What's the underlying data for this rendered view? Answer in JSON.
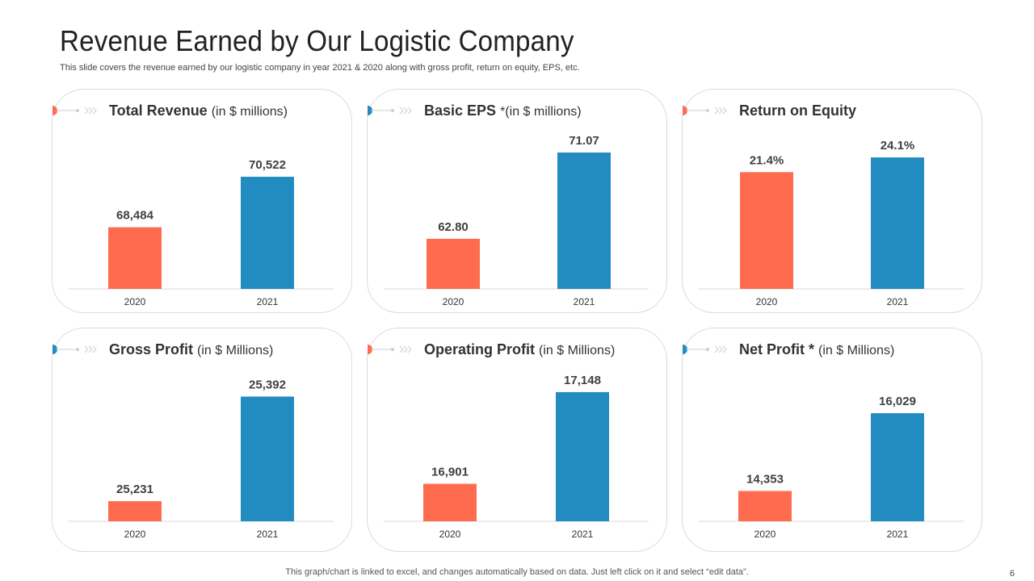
{
  "slide": {
    "title": "Revenue Earned by Our Logistic Company",
    "subtitle": "This slide covers the revenue earned by our logistic company in year 2021 & 2020 along with gross profit, return on equity, EPS, etc.",
    "footer_note": "This graph/chart is linked to excel, and changes automatically based on data. Just left click on it and select “edit data”.",
    "page_number": "6"
  },
  "colors": {
    "bar_2020": "#FF6B4F",
    "bar_2021": "#228BBF",
    "card_border": "#DCDCDC",
    "baseline": "#D9D9D9"
  },
  "cards": [
    {
      "title": "Total Revenue",
      "unit": "(in $ millions)",
      "accent": "#FF6B4F"
    },
    {
      "title": "Basic EPS",
      "unit": "*(in $ millions)",
      "accent": "#228BBF"
    },
    {
      "title": "Return on Equity",
      "unit": "",
      "accent": "#FF6B4F"
    },
    {
      "title": "Gross Profit",
      "unit": "(in $ Millions)",
      "accent": "#228BBF"
    },
    {
      "title": "Operating Profit",
      "unit": "(in $ Millions)",
      "accent": "#FF6B4F"
    },
    {
      "title": "Net Profit *",
      "unit": "(in $ Millions)",
      "accent": "#228BBF"
    }
  ],
  "chart_data": [
    {
      "type": "bar",
      "title": "Total Revenue (in $ millions)",
      "categories": [
        "2020",
        "2021"
      ],
      "values": [
        68484,
        70522
      ],
      "data_labels": [
        "68,484",
        "70,522"
      ],
      "ylim": [
        66000,
        71500
      ]
    },
    {
      "type": "bar",
      "title": "Basic EPS *(in $ millions)",
      "categories": [
        "2020",
        "2021"
      ],
      "values": [
        62.8,
        71.07
      ],
      "data_labels": [
        "62.80",
        "71.07"
      ],
      "ylim": [
        58,
        71.07
      ]
    },
    {
      "type": "bar",
      "title": "Return on Equity",
      "categories": [
        "2020",
        "2021"
      ],
      "values": [
        21.4,
        24.1
      ],
      "data_labels": [
        "21.4%",
        "24.1%"
      ],
      "ylim": [
        0,
        25
      ]
    },
    {
      "type": "bar",
      "title": "Gross Profit (in $ Millions)",
      "categories": [
        "2020",
        "2021"
      ],
      "values": [
        25231,
        25392
      ],
      "data_labels": [
        "25,231",
        "25,392"
      ],
      "ylim": [
        25200,
        25400
      ]
    },
    {
      "type": "bar",
      "title": "Operating Profit (in $ Millions)",
      "categories": [
        "2020",
        "2021"
      ],
      "values": [
        16901,
        17148
      ],
      "data_labels": [
        "16,901",
        "17,148"
      ],
      "ylim": [
        16800,
        17150
      ]
    },
    {
      "type": "bar",
      "title": "Net Profit *(in $ Millions)",
      "categories": [
        "2020",
        "2021"
      ],
      "values": [
        14353,
        16029
      ],
      "data_labels": [
        "14,353",
        "16,029"
      ],
      "ylim": [
        13700,
        16500
      ]
    }
  ]
}
